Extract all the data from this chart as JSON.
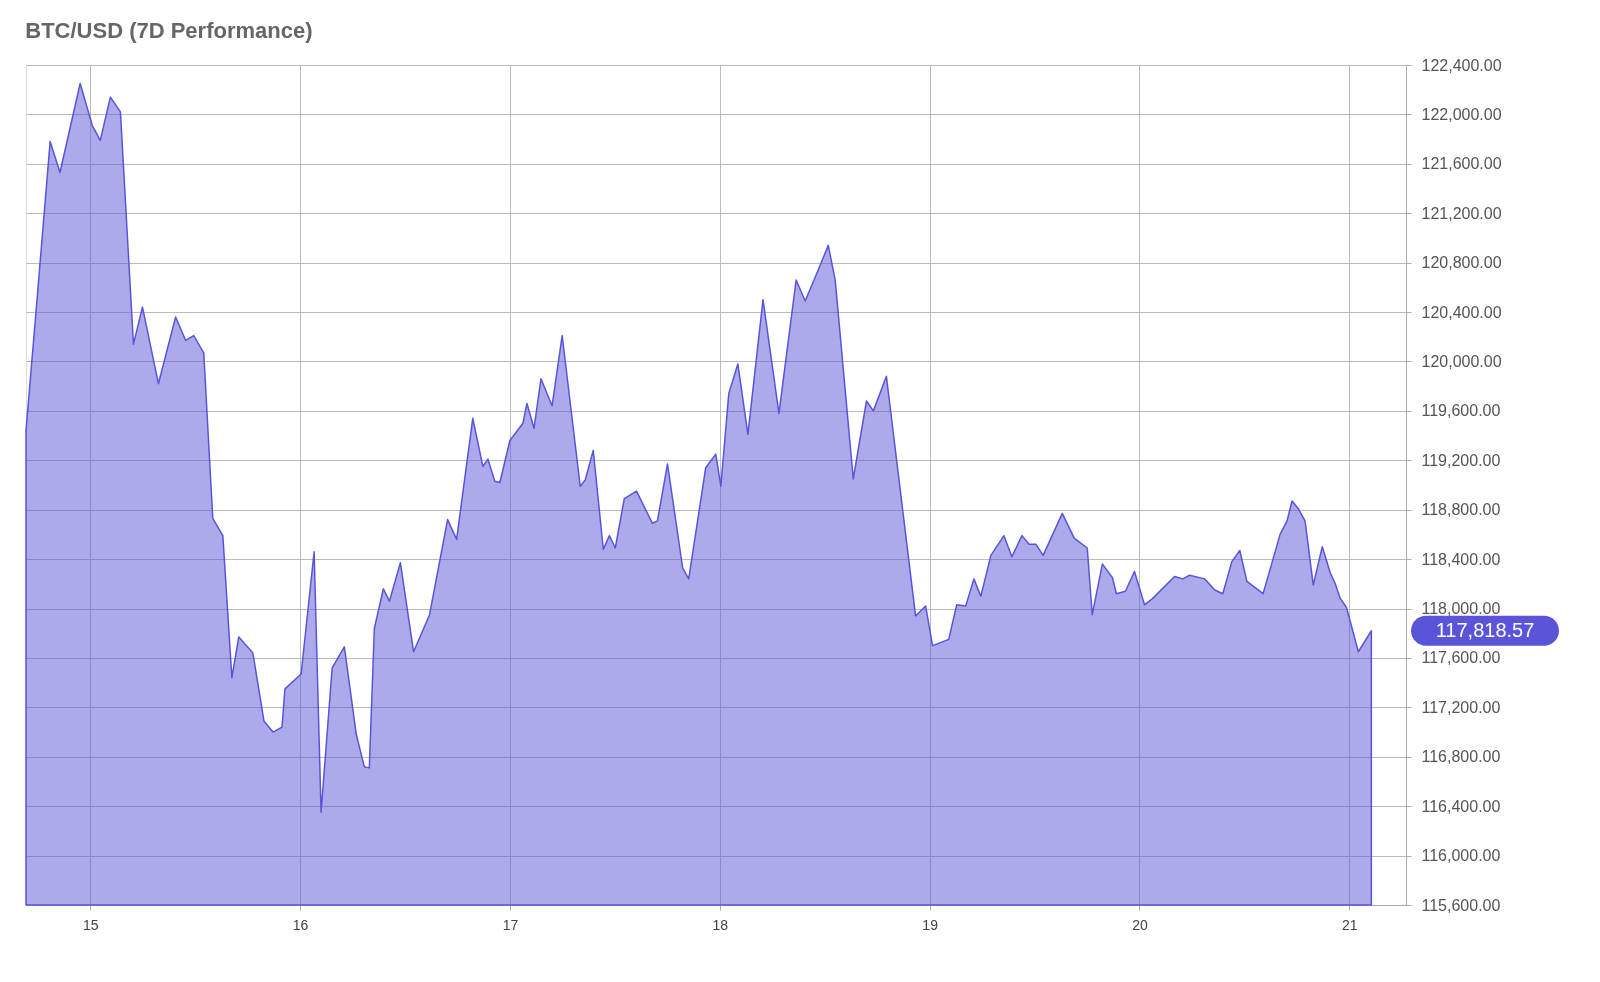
{
  "chart_data": {
    "type": "area",
    "title": "BTC/USD (7D Performance)",
    "x": [
      14.694,
      14.746,
      14.809,
      14.856,
      14.952,
      15.01,
      15.048,
      15.096,
      15.144,
      15.206,
      15.249,
      15.325,
      15.407,
      15.455,
      15.493,
      15.541,
      15.584,
      15.632,
      15.675,
      15.708,
      15.775,
      15.828,
      15.871,
      15.914,
      15.928,
      16.005,
      16.067,
      16.1,
      16.153,
      16.211,
      16.268,
      16.306,
      16.33,
      16.354,
      16.397,
      16.426,
      16.478,
      16.541,
      16.617,
      16.703,
      16.746,
      16.823,
      16.871,
      16.895,
      16.928,
      16.952,
      17.0,
      17.062,
      17.081,
      17.115,
      17.148,
      17.201,
      17.249,
      17.335,
      17.359,
      17.397,
      17.445,
      17.474,
      17.502,
      17.545,
      17.603,
      17.679,
      17.703,
      17.751,
      17.823,
      17.852,
      17.933,
      17.981,
      18.005,
      18.043,
      18.086,
      18.134,
      18.206,
      18.282,
      18.364,
      18.407,
      18.469,
      18.517,
      18.55,
      18.636,
      18.699,
      18.732,
      18.794,
      18.933,
      18.981,
      19.014,
      19.091,
      19.129,
      19.172,
      19.211,
      19.244,
      19.292,
      19.354,
      19.392,
      19.44,
      19.474,
      19.507,
      19.541,
      19.632,
      19.689,
      19.751,
      19.775,
      19.823,
      19.871,
      19.89,
      19.933,
      19.976,
      20.024,
      20.062,
      20.167,
      20.206,
      20.239,
      20.311,
      20.359,
      20.397,
      20.44,
      20.478,
      20.512,
      20.589,
      20.67,
      20.703,
      20.727,
      20.756,
      20.789,
      20.828,
      20.871,
      20.909,
      20.933,
      20.957,
      20.986,
      21.043,
      21.105
    ],
    "series": [
      {
        "color": "#5a55d8",
        "values": [
          119440,
          120490,
          121780,
          121530,
          122250,
          121910,
          121790,
          122140,
          122020,
          120140,
          120440,
          119820,
          120360,
          120170,
          120210,
          120070,
          118730,
          118590,
          117440,
          117770,
          117640,
          117090,
          117000,
          117040,
          117350,
          117470,
          118460,
          116350,
          117520,
          117690,
          116980,
          116720,
          116710,
          117840,
          118160,
          118060,
          118370,
          117650,
          117950,
          118720,
          118560,
          119540,
          119150,
          119210,
          119030,
          119020,
          119360,
          119500,
          119660,
          119460,
          119860,
          119640,
          120210,
          118990,
          119040,
          119280,
          118480,
          118590,
          118490,
          118890,
          118950,
          118690,
          118710,
          119170,
          118330,
          118240,
          119140,
          119250,
          118990,
          119740,
          119980,
          119410,
          120500,
          119580,
          120660,
          120490,
          120740,
          120940,
          120660,
          119050,
          119680,
          119600,
          119880,
          117940,
          118020,
          117700,
          117750,
          118030,
          118020,
          118240,
          118100,
          118430,
          118590,
          118420,
          118590,
          118520,
          118520,
          118430,
          118770,
          118570,
          118490,
          117950,
          118360,
          118250,
          118120,
          118140,
          118300,
          118030,
          118080,
          118260,
          118240,
          118270,
          118240,
          118150,
          118120,
          118380,
          118470,
          118220,
          118120,
          118600,
          118710,
          118870,
          118810,
          118710,
          118190,
          118500,
          118290,
          118200,
          118080,
          118010,
          117650,
          117820
        ]
      }
    ],
    "xlim": [
      14.694,
      21.27
    ],
    "xticks": [
      15,
      16,
      17,
      18,
      19,
      20,
      21
    ],
    "ylim": [
      115600,
      122400
    ],
    "yticks": [
      {
        "value": 115600,
        "label": "115,600.00"
      },
      {
        "value": 116000,
        "label": "116,000.00"
      },
      {
        "value": 116400,
        "label": "116,400.00"
      },
      {
        "value": 116800,
        "label": "116,800.00"
      },
      {
        "value": 117200,
        "label": "117,200.00"
      },
      {
        "value": 117600,
        "label": "117,600.00"
      },
      {
        "value": 118000,
        "label": "118,000.00"
      },
      {
        "value": 118400,
        "label": "118,400.00"
      },
      {
        "value": 118800,
        "label": "118,800.00"
      },
      {
        "value": 119200,
        "label": "119,200.00"
      },
      {
        "value": 119600,
        "label": "119,600.00"
      },
      {
        "value": 120000,
        "label": "120,000.00"
      },
      {
        "value": 120400,
        "label": "120,400.00"
      },
      {
        "value": 120800,
        "label": "120,800.00"
      },
      {
        "value": 121200,
        "label": "121,200.00"
      },
      {
        "value": 121600,
        "label": "121,600.00"
      },
      {
        "value": 122000,
        "label": "122,000.00"
      },
      {
        "value": 122400,
        "label": "122,400.00"
      }
    ],
    "annotations": [
      "117,818.57"
    ],
    "grid": true
  }
}
